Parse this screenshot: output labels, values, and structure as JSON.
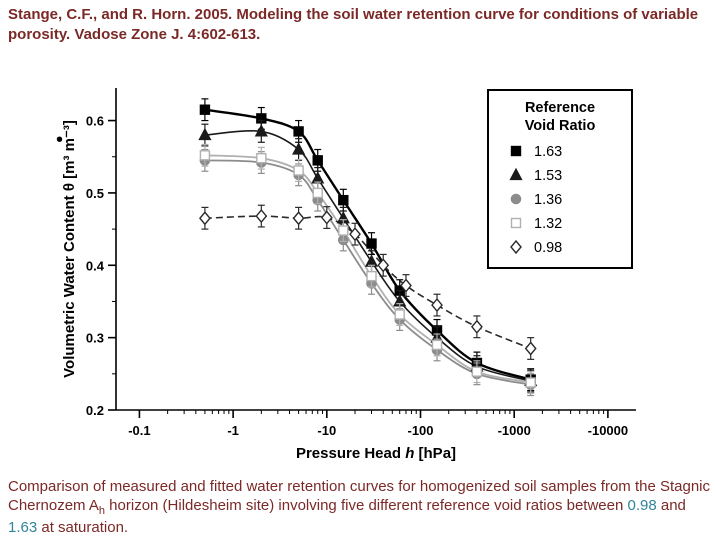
{
  "citation": {
    "text": "Stange, C.F., and R. Horn. 2005. Modeling the soil water retention curve for conditions of variable porosity. Vadose Zone J. 4:602-613."
  },
  "bullet_glyph": "•",
  "caption": {
    "part1": "Comparison of measured and fitted water retention curves for homogenized soil samples from the Stagnic Chernozem A",
    "subscript": "h",
    "part2": " horizon (Hildesheim site) involving five different reference void ratios between ",
    "value1": "0.98",
    "part3": " and ",
    "value2": "1.63",
    "part4": " at saturation."
  },
  "chart_data": {
    "type": "scatter",
    "title": "",
    "xlabel_pre": "Pressure Head ",
    "xlabel_italic": "h",
    "xlabel_post": " [hPa]",
    "ylabel": "Volumetric Water Content θ [m³ m⁻³]",
    "x_scale": "log (negative pressure head, magnitudes plotted)",
    "x_ticks": [
      0.1,
      1,
      10,
      100,
      1000,
      10000
    ],
    "x_tick_labels": [
      "-0.1",
      "-1",
      "-10",
      "-100",
      "-1000",
      "-10000"
    ],
    "xlim_log": [
      -1.25,
      4.3
    ],
    "y_ticks": [
      0.2,
      0.3,
      0.4,
      0.5,
      0.6
    ],
    "y_tick_labels": [
      "0.2",
      "0.3",
      "0.4",
      "0.5",
      "0.6"
    ],
    "ylim": [
      0.2,
      0.645
    ],
    "grid": false,
    "yerr": 0.015,
    "legend": {
      "title_line1": "Reference",
      "title_line2": "Void Ratio",
      "position": "top-right"
    },
    "series": [
      {
        "name": "1.63",
        "marker": "square",
        "filled": true,
        "color": "#000000",
        "line": "solid",
        "width": 2.4,
        "x": [
          0.5,
          2,
          5,
          8,
          15,
          30,
          60,
          150,
          400,
          1500
        ],
        "y": [
          0.615,
          0.603,
          0.585,
          0.545,
          0.49,
          0.43,
          0.365,
          0.31,
          0.265,
          0.242
        ]
      },
      {
        "name": "1.53",
        "marker": "triangle",
        "filled": true,
        "color": "#1a1a1a",
        "line": "solid",
        "width": 1.6,
        "x": [
          0.5,
          2,
          5,
          8,
          15,
          30,
          60,
          150,
          400,
          1500
        ],
        "y": [
          0.58,
          0.585,
          0.56,
          0.52,
          0.465,
          0.405,
          0.35,
          0.3,
          0.26,
          0.24
        ]
      },
      {
        "name": "1.36",
        "marker": "circle",
        "filled": true,
        "color": "#8c8c8c",
        "line": "solid",
        "width": 1.8,
        "x": [
          0.5,
          2,
          5,
          8,
          15,
          30,
          60,
          150,
          400,
          1500
        ],
        "y": [
          0.545,
          0.542,
          0.525,
          0.49,
          0.435,
          0.375,
          0.325,
          0.283,
          0.25,
          0.235
        ]
      },
      {
        "name": "1.32",
        "marker": "square",
        "filled": false,
        "color": "#b0b0b0",
        "line": "solid",
        "width": 1.8,
        "x": [
          0.5,
          2,
          5,
          8,
          15,
          30,
          60,
          150,
          400,
          1500
        ],
        "y": [
          0.552,
          0.548,
          0.531,
          0.5,
          0.448,
          0.385,
          0.332,
          0.29,
          0.253,
          0.238
        ]
      },
      {
        "name": "0.98",
        "marker": "diamond",
        "filled": false,
        "color": "#2b2b2b",
        "line": "dashed",
        "width": 1.6,
        "x": [
          0.5,
          2,
          5,
          10,
          20,
          40,
          70,
          150,
          400,
          1500
        ],
        "y": [
          0.465,
          0.468,
          0.465,
          0.466,
          0.443,
          0.4,
          0.372,
          0.345,
          0.315,
          0.285
        ]
      }
    ]
  }
}
